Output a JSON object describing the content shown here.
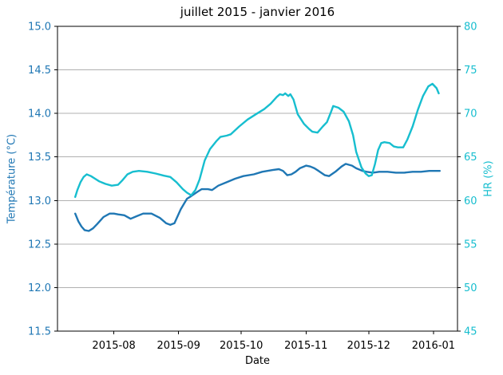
{
  "chart_data": {
    "type": "line",
    "title": "juillet 2015 - janvier 2016",
    "xlabel": "Date",
    "ylabel_left": "Température (°C)",
    "ylabel_right": "HR (%)",
    "grid": "horizontal",
    "legend": "none",
    "x_unit": "days since 2015-07-01",
    "xlim": [
      4,
      195.5
    ],
    "ylim_left": [
      11.5,
      15.0
    ],
    "ylim_right": [
      45,
      80
    ],
    "yticks_left": [
      11.5,
      12.0,
      12.5,
      13.0,
      13.5,
      14.0,
      14.5,
      15.0
    ],
    "yticks_right": [
      45,
      50,
      55,
      60,
      65,
      70,
      75,
      80
    ],
    "x_ticks": [
      {
        "v": 31,
        "label": "2015-08"
      },
      {
        "v": 62,
        "label": "2015-09"
      },
      {
        "v": 92,
        "label": "2015-10"
      },
      {
        "v": 123,
        "label": "2015-11"
      },
      {
        "v": 153,
        "label": "2015-12"
      },
      {
        "v": 184,
        "label": "2016-01"
      }
    ],
    "colors": {
      "temperature": "#1f77b4",
      "humidity": "#17becf",
      "grid": "#b0b0b0",
      "spine": "#000000",
      "text": "#000000"
    },
    "series": [
      {
        "name": "Température",
        "axis": "left",
        "color_key": "temperature",
        "points": [
          [
            12.5,
            12.85
          ],
          [
            14,
            12.76
          ],
          [
            15.5,
            12.7
          ],
          [
            17,
            12.66
          ],
          [
            19,
            12.65
          ],
          [
            21,
            12.68
          ],
          [
            23,
            12.73
          ],
          [
            26,
            12.81
          ],
          [
            29,
            12.85
          ],
          [
            31,
            12.85
          ],
          [
            33,
            12.84
          ],
          [
            36,
            12.83
          ],
          [
            39,
            12.79
          ],
          [
            42,
            12.82
          ],
          [
            45,
            12.85
          ],
          [
            49,
            12.85
          ],
          [
            53,
            12.8
          ],
          [
            56,
            12.74
          ],
          [
            58,
            12.72
          ],
          [
            60,
            12.74
          ],
          [
            63,
            12.9
          ],
          [
            66,
            13.02
          ],
          [
            68,
            13.05
          ],
          [
            71,
            13.1
          ],
          [
            73,
            13.13
          ],
          [
            76,
            13.13
          ],
          [
            78,
            13.12
          ],
          [
            81,
            13.17
          ],
          [
            85,
            13.21
          ],
          [
            89,
            13.25
          ],
          [
            93,
            13.28
          ],
          [
            98,
            13.3
          ],
          [
            102,
            13.33
          ],
          [
            107,
            13.35
          ],
          [
            110,
            13.36
          ],
          [
            112,
            13.34
          ],
          [
            114,
            13.29
          ],
          [
            116,
            13.3
          ],
          [
            118,
            13.33
          ],
          [
            120,
            13.37
          ],
          [
            123,
            13.4
          ],
          [
            125,
            13.39
          ],
          [
            127,
            13.37
          ],
          [
            129,
            13.34
          ],
          [
            132,
            13.29
          ],
          [
            134,
            13.28
          ],
          [
            137,
            13.33
          ],
          [
            140,
            13.39
          ],
          [
            142,
            13.42
          ],
          [
            145,
            13.4
          ],
          [
            147,
            13.37
          ],
          [
            150,
            13.34
          ],
          [
            152,
            13.33
          ],
          [
            155,
            13.32
          ],
          [
            158,
            13.33
          ],
          [
            162,
            13.33
          ],
          [
            166,
            13.32
          ],
          [
            170,
            13.32
          ],
          [
            174,
            13.33
          ],
          [
            178,
            13.33
          ],
          [
            182,
            13.34
          ],
          [
            185,
            13.34
          ],
          [
            187,
            13.34
          ]
        ]
      },
      {
        "name": "HR",
        "axis": "right",
        "color_key": "humidity",
        "points": [
          [
            12.5,
            60.4
          ],
          [
            13.5,
            61.2
          ],
          [
            15,
            62.1
          ],
          [
            16.5,
            62.7
          ],
          [
            18,
            63.0
          ],
          [
            20,
            62.8
          ],
          [
            22,
            62.5
          ],
          [
            24,
            62.2
          ],
          [
            27,
            61.9
          ],
          [
            30,
            61.7
          ],
          [
            33,
            61.8
          ],
          [
            35,
            62.3
          ],
          [
            37.5,
            63.0
          ],
          [
            40,
            63.3
          ],
          [
            43,
            63.4
          ],
          [
            47,
            63.3
          ],
          [
            51,
            63.1
          ],
          [
            55,
            62.85
          ],
          [
            58,
            62.7
          ],
          [
            61,
            62.1
          ],
          [
            64,
            61.3
          ],
          [
            66,
            60.9
          ],
          [
            68,
            60.6
          ],
          [
            70,
            61.2
          ],
          [
            72,
            62.4
          ],
          [
            74.5,
            64.6
          ],
          [
            77,
            65.9
          ],
          [
            80,
            66.8
          ],
          [
            82,
            67.3
          ],
          [
            85,
            67.45
          ],
          [
            87,
            67.6
          ],
          [
            91,
            68.5
          ],
          [
            95,
            69.3
          ],
          [
            99,
            69.9
          ],
          [
            103,
            70.5
          ],
          [
            106,
            71.1
          ],
          [
            109,
            71.9
          ],
          [
            110.5,
            72.2
          ],
          [
            112,
            72.1
          ],
          [
            113,
            72.3
          ],
          [
            114.5,
            72.0
          ],
          [
            115.5,
            72.2
          ],
          [
            117,
            71.6
          ],
          [
            119,
            69.9
          ],
          [
            122,
            68.8
          ],
          [
            124.5,
            68.2
          ],
          [
            126,
            67.9
          ],
          [
            128.5,
            67.8
          ],
          [
            131,
            68.5
          ],
          [
            133,
            69.0
          ],
          [
            135,
            70.2
          ],
          [
            136,
            70.85
          ],
          [
            138.5,
            70.65
          ],
          [
            141,
            70.2
          ],
          [
            143.5,
            69.1
          ],
          [
            145.5,
            67.5
          ],
          [
            147,
            65.6
          ],
          [
            149.5,
            63.8
          ],
          [
            151.5,
            63.1
          ],
          [
            153,
            62.8
          ],
          [
            154.5,
            62.9
          ],
          [
            156,
            64.2
          ],
          [
            157.5,
            65.8
          ],
          [
            159,
            66.6
          ],
          [
            160.5,
            66.7
          ],
          [
            163,
            66.6
          ],
          [
            165,
            66.2
          ],
          [
            167,
            66.1
          ],
          [
            169.5,
            66.1
          ],
          [
            171.5,
            67.0
          ],
          [
            174,
            68.5
          ],
          [
            176.5,
            70.4
          ],
          [
            179,
            72.0
          ],
          [
            181.5,
            73.1
          ],
          [
            183.5,
            73.4
          ],
          [
            185.5,
            72.9
          ],
          [
            186.5,
            72.3
          ]
        ]
      }
    ]
  }
}
